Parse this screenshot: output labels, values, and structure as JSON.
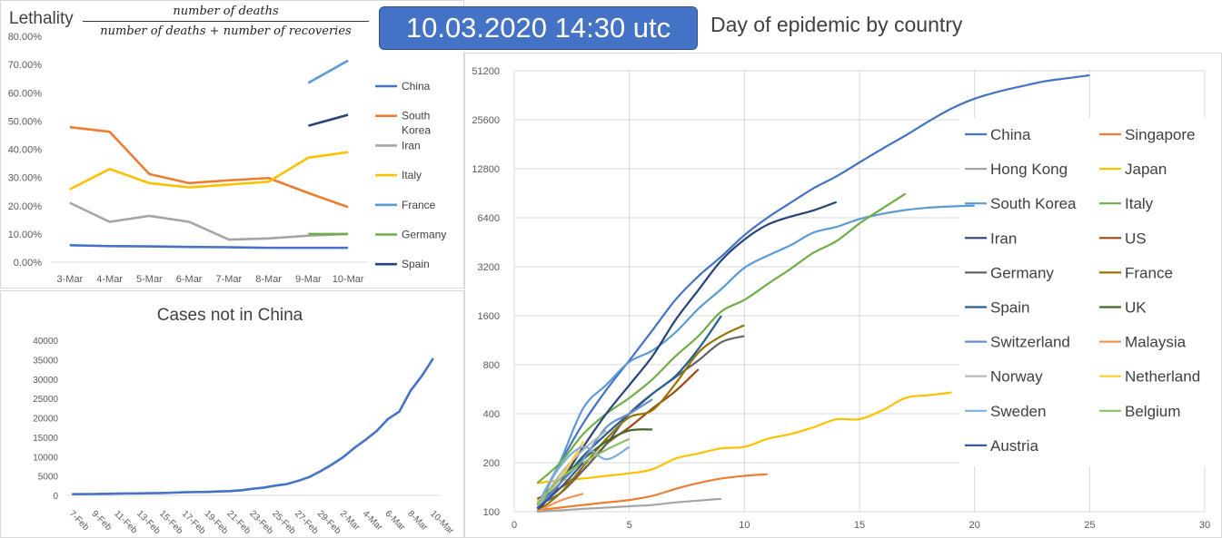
{
  "header": {
    "date_badge": "10.03.2020 14:30 utc",
    "day_chart_title": "Day of epidemic by country",
    "lethality_label": "Lethality",
    "formula_numerator": "number of deaths",
    "formula_denominator": "number of deaths + number of recoveries"
  },
  "chart_data": [
    {
      "id": "lethality",
      "type": "line",
      "title": "",
      "categories": [
        "3-Mar",
        "4-Mar",
        "5-Mar",
        "6-Mar",
        "7-Mar",
        "8-Mar",
        "9-Mar",
        "10-Mar"
      ],
      "ylim": [
        0,
        80
      ],
      "y_ticks": [
        "0.00%",
        "10.00%",
        "20.00%",
        "30.00%",
        "40.00%",
        "50.00%",
        "60.00%",
        "70.00%",
        "80.00%"
      ],
      "grid": false,
      "legend": "right",
      "series": [
        {
          "name": "China",
          "color": "#4472c4",
          "values": [
            6,
            5.7,
            5.6,
            5.4,
            5.3,
            5.1,
            5.1,
            5.1
          ]
        },
        {
          "name": "South Korea",
          "color": "#ed7d31",
          "values": [
            47.8,
            46.2,
            31.2,
            28,
            29,
            29.8,
            24.5,
            19.5
          ]
        },
        {
          "name": "Iran",
          "color": "#a5a5a5",
          "values": [
            21,
            14.3,
            16.4,
            14.3,
            8,
            8.4,
            9.4,
            10
          ]
        },
        {
          "name": "Italy",
          "color": "#ffc000",
          "values": [
            25.8,
            33,
            28,
            26.5,
            27.5,
            28.5,
            37,
            39
          ]
        },
        {
          "name": "France",
          "color": "#5b9bd5",
          "values": [
            null,
            null,
            null,
            null,
            null,
            null,
            63.5,
            71.4
          ]
        },
        {
          "name": "Germany",
          "color": "#70ad47",
          "values": [
            null,
            null,
            null,
            null,
            null,
            null,
            10,
            10
          ]
        },
        {
          "name": "Spain",
          "color": "#264478",
          "values": [
            null,
            null,
            null,
            null,
            null,
            null,
            48.3,
            52.2
          ]
        }
      ]
    },
    {
      "id": "cases",
      "type": "line",
      "title": "Cases not in China",
      "categories": [
        "7-Feb",
        "8-Feb",
        "9-Feb",
        "10-Feb",
        "11-Feb",
        "12-Feb",
        "13-Feb",
        "14-Feb",
        "15-Feb",
        "16-Feb",
        "17-Feb",
        "18-Feb",
        "19-Feb",
        "20-Feb",
        "21-Feb",
        "22-Feb",
        "23-Feb",
        "24-Feb",
        "25-Feb",
        "26-Feb",
        "27-Feb",
        "28-Feb",
        "29-Feb",
        "1-Mar",
        "2-Mar",
        "3-Mar",
        "4-Mar",
        "5-Mar",
        "6-Mar",
        "7-Mar",
        "8-Mar",
        "9-Mar",
        "10-Mar"
      ],
      "tick_labels": [
        "7-Feb",
        "9-Feb",
        "11-Feb",
        "13-Feb",
        "15-Feb",
        "17-Feb",
        "19-Feb",
        "21-Feb",
        "23-Feb",
        "25-Feb",
        "27-Feb",
        "29-Feb",
        "2-Mar",
        "4-Mar",
        "6-Mar",
        "8-Mar",
        "10-Mar"
      ],
      "ylim": [
        0,
        40000
      ],
      "y_ticks": [
        "0",
        "5000",
        "10000",
        "15000",
        "20000",
        "25000",
        "30000",
        "35000",
        "40000"
      ],
      "grid": false,
      "series": [
        {
          "name": "",
          "color": "#4472c4",
          "values": [
            300,
            320,
            350,
            400,
            450,
            500,
            520,
            560,
            600,
            700,
            800,
            850,
            900,
            1000,
            1100,
            1300,
            1700,
            2000,
            2500,
            2900,
            3700,
            4700,
            6200,
            7900,
            9800,
            12200,
            14300,
            16600,
            19700,
            21600,
            27000,
            30800,
            35300
          ]
        }
      ]
    },
    {
      "id": "day_of_epidemic",
      "type": "line",
      "title": "Day of epidemic by country",
      "x_ticks": [
        "0",
        "5",
        "10",
        "15",
        "20",
        "25",
        "30"
      ],
      "xlim": [
        0,
        30
      ],
      "y_scale": "log2",
      "y_ticks": [
        "100",
        "200",
        "400",
        "800",
        "1600",
        "3200",
        "6400",
        "12800",
        "25600",
        "51200"
      ],
      "ylim": [
        100,
        51200
      ],
      "grid": true,
      "legend": "right",
      "series": [
        {
          "name": "China",
          "color": "#4472c4",
          "points": [
            [
              1,
              110
            ],
            [
              2,
              200
            ],
            [
              3,
              350
            ],
            [
              4,
              560
            ],
            [
              5,
              850
            ],
            [
              6,
              1300
            ],
            [
              7,
              2000
            ],
            [
              8,
              2800
            ],
            [
              9,
              3700
            ],
            [
              10,
              5000
            ],
            [
              11,
              6400
            ],
            [
              12,
              7900
            ],
            [
              13,
              9700
            ],
            [
              14,
              11500
            ],
            [
              15,
              14000
            ],
            [
              16,
              17000
            ],
            [
              17,
              20500
            ],
            [
              18,
              25000
            ],
            [
              19,
              30000
            ],
            [
              20,
              34500
            ],
            [
              21,
              38000
            ],
            [
              22,
              41000
            ],
            [
              23,
              44000
            ],
            [
              24,
              46000
            ],
            [
              25,
              48000
            ]
          ]
        },
        {
          "name": "Singapore",
          "color": "#ed7d31",
          "points": [
            [
              1,
              102
            ],
            [
              2,
              106
            ],
            [
              3,
              110
            ],
            [
              4,
              114
            ],
            [
              5,
              118
            ],
            [
              6,
              125
            ],
            [
              7,
              138
            ],
            [
              8,
              150
            ],
            [
              9,
              160
            ],
            [
              10,
              166
            ],
            [
              11,
              170
            ]
          ]
        },
        {
          "name": "Hong Kong",
          "color": "#a5a5a5",
          "points": [
            [
              1,
              100
            ],
            [
              2,
              102
            ],
            [
              3,
              104
            ],
            [
              4,
              106
            ],
            [
              5,
              108
            ],
            [
              6,
              110
            ],
            [
              7,
              114
            ],
            [
              8,
              117
            ],
            [
              9,
              120
            ]
          ]
        },
        {
          "name": "Japan",
          "color": "#ffc000",
          "points": [
            [
              1,
              150
            ],
            [
              2,
              156
            ],
            [
              3,
              160
            ],
            [
              4,
              166
            ],
            [
              5,
              172
            ],
            [
              6,
              182
            ],
            [
              7,
              212
            ],
            [
              8,
              228
            ],
            [
              9,
              245
            ],
            [
              10,
              250
            ],
            [
              11,
              280
            ],
            [
              12,
              300
            ],
            [
              13,
              330
            ],
            [
              14,
              370
            ],
            [
              15,
              370
            ],
            [
              16,
              420
            ],
            [
              17,
              500
            ],
            [
              18,
              520
            ],
            [
              19,
              540
            ]
          ]
        },
        {
          "name": "South Korea",
          "color": "#5b9bd5",
          "points": [
            [
              1,
              104
            ],
            [
              2,
              204
            ],
            [
              3,
              433
            ],
            [
              4,
              602
            ],
            [
              5,
              833
            ],
            [
              6,
              977
            ],
            [
              7,
              1261
            ],
            [
              8,
              1766
            ],
            [
              9,
              2337
            ],
            [
              10,
              3150
            ],
            [
              11,
              3736
            ],
            [
              12,
              4335
            ],
            [
              13,
              5186
            ],
            [
              14,
              5621
            ],
            [
              15,
              6284
            ],
            [
              16,
              6767
            ],
            [
              17,
              7134
            ],
            [
              18,
              7382
            ],
            [
              19,
              7513
            ],
            [
              20,
              7600
            ]
          ]
        },
        {
          "name": "Italy",
          "color": "#70ad47",
          "points": [
            [
              1,
              150
            ],
            [
              2,
              200
            ],
            [
              3,
              300
            ],
            [
              4,
              400
            ],
            [
              5,
              500
            ],
            [
              6,
              650
            ],
            [
              7,
              900
            ],
            [
              8,
              1200
            ],
            [
              9,
              1700
            ],
            [
              10,
              2000
            ],
            [
              11,
              2500
            ],
            [
              12,
              3100
            ],
            [
              13,
              3900
            ],
            [
              14,
              4600
            ],
            [
              15,
              5900
            ],
            [
              16,
              7300
            ],
            [
              17,
              9000
            ]
          ]
        },
        {
          "name": "Iran",
          "color": "#264478",
          "points": [
            [
              1,
              100
            ],
            [
              2,
              150
            ],
            [
              3,
              250
            ],
            [
              4,
              400
            ],
            [
              5,
              600
            ],
            [
              6,
              900
            ],
            [
              7,
              1500
            ],
            [
              8,
              2300
            ],
            [
              9,
              3500
            ],
            [
              10,
              4700
            ],
            [
              11,
              5800
            ],
            [
              12,
              6500
            ],
            [
              13,
              7100
            ],
            [
              14,
              8000
            ]
          ]
        },
        {
          "name": "US",
          "color": "#9e480e",
          "points": [
            [
              1,
              120
            ],
            [
              2,
              140
            ],
            [
              3,
              180
            ],
            [
              4,
              260
            ],
            [
              5,
              330
            ],
            [
              6,
              430
            ],
            [
              7,
              550
            ],
            [
              8,
              750
            ]
          ]
        },
        {
          "name": "Germany",
          "color": "#636363",
          "points": [
            [
              1,
              110
            ],
            [
              2,
              130
            ],
            [
              3,
              180
            ],
            [
              4,
              260
            ],
            [
              5,
              400
            ],
            [
              6,
              530
            ],
            [
              7,
              670
            ],
            [
              8,
              850
            ],
            [
              9,
              1100
            ],
            [
              10,
              1200
            ]
          ]
        },
        {
          "name": "France",
          "color": "#997300",
          "points": [
            [
              1,
              100
            ],
            [
              2,
              130
            ],
            [
              3,
              190
            ],
            [
              4,
              280
            ],
            [
              5,
              380
            ],
            [
              6,
              420
            ],
            [
              7,
              610
            ],
            [
              8,
              950
            ],
            [
              9,
              1200
            ],
            [
              10,
              1400
            ]
          ]
        },
        {
          "name": "Spain",
          "color": "#255e91",
          "points": [
            [
              1,
              110
            ],
            [
              2,
              150
            ],
            [
              3,
              220
            ],
            [
              4,
              300
            ],
            [
              5,
              400
            ],
            [
              6,
              530
            ],
            [
              7,
              680
            ],
            [
              8,
              1000
            ],
            [
              9,
              1600
            ]
          ]
        },
        {
          "name": "UK",
          "color": "#43682b",
          "points": [
            [
              1,
              115
            ],
            [
              2,
              160
            ],
            [
              3,
              210
            ],
            [
              4,
              270
            ],
            [
              5,
              315
            ],
            [
              6,
              320
            ]
          ]
        },
        {
          "name": "Switzerland",
          "color": "#698ed0",
          "points": [
            [
              1,
              105
            ],
            [
              2,
              150
            ],
            [
              3,
              210
            ],
            [
              4,
              330
            ],
            [
              5,
              400
            ],
            [
              6,
              490
            ]
          ]
        },
        {
          "name": "Malaysia",
          "color": "#f1975a",
          "points": [
            [
              1,
              100
            ],
            [
              2,
              117
            ],
            [
              3,
              129
            ]
          ]
        },
        {
          "name": "Norway",
          "color": "#b7b7b7",
          "points": [
            [
              1,
              105
            ],
            [
              2,
              170
            ],
            [
              3,
              240
            ],
            [
              4,
              315
            ]
          ]
        },
        {
          "name": "Netherland",
          "color": "#ffcd33",
          "points": [
            [
              1,
              115
            ],
            [
              2,
              160
            ],
            [
              3,
              270
            ]
          ]
        },
        {
          "name": "Sweden",
          "color": "#7cafdd",
          "points": [
            [
              1,
              110
            ],
            [
              2,
              190
            ],
            [
              3,
              250
            ],
            [
              4,
              210
            ],
            [
              5,
              250
            ]
          ]
        },
        {
          "name": "Belgium",
          "color": "#8cc168",
          "points": [
            [
              1,
              110
            ],
            [
              2,
              160
            ],
            [
              3,
              200
            ],
            [
              4,
              240
            ],
            [
              5,
              280
            ]
          ]
        },
        {
          "name": "Austria",
          "color": "#335aa1",
          "points": [
            [
              1,
              105
            ],
            [
              2,
              140
            ],
            [
              3,
              200
            ]
          ]
        }
      ]
    }
  ]
}
